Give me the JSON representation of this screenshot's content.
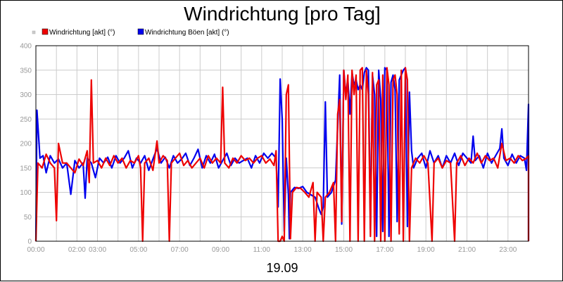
{
  "chart_data": {
    "type": "line",
    "title": "Windrichtung [pro Tag]",
    "xlabel": "19.09",
    "ylabel": "",
    "ylim": [
      0,
      400
    ],
    "yticks": [
      0,
      50,
      100,
      150,
      200,
      250,
      300,
      350,
      400
    ],
    "xlim": [
      0,
      24
    ],
    "xticks": [
      {
        "hour": 0,
        "label": "00:00"
      },
      {
        "hour": 2,
        "label": "02:00"
      },
      {
        "hour": 3,
        "label": "03:00"
      },
      {
        "hour": 5,
        "label": "05:00"
      },
      {
        "hour": 7,
        "label": "07:00"
      },
      {
        "hour": 9,
        "label": "09:00"
      },
      {
        "hour": 11,
        "label": "11:00"
      },
      {
        "hour": 13,
        "label": "13:00"
      },
      {
        "hour": 15,
        "label": "15:00"
      },
      {
        "hour": 17,
        "label": "17:00"
      },
      {
        "hour": 19,
        "label": "19:00"
      },
      {
        "hour": 21,
        "label": "21:00"
      },
      {
        "hour": 23,
        "label": "23:00"
      }
    ],
    "grid": true,
    "legend_position": "top-left",
    "series": [
      {
        "name": "Windrichtung Böen [akt] (°)",
        "color": "#0000ee",
        "points": [
          [
            0.0,
            0
          ],
          [
            0.05,
            268
          ],
          [
            0.2,
            170
          ],
          [
            0.35,
            175
          ],
          [
            0.5,
            140
          ],
          [
            0.7,
            175
          ],
          [
            0.9,
            160
          ],
          [
            1.1,
            168
          ],
          [
            1.3,
            150
          ],
          [
            1.5,
            160
          ],
          [
            1.7,
            96
          ],
          [
            1.9,
            165
          ],
          [
            2.1,
            150
          ],
          [
            2.3,
            160
          ],
          [
            2.4,
            88
          ],
          [
            2.5,
            170
          ],
          [
            2.7,
            160
          ],
          [
            2.9,
            130
          ],
          [
            3.1,
            170
          ],
          [
            3.3,
            160
          ],
          [
            3.5,
            172
          ],
          [
            3.7,
            150
          ],
          [
            3.9,
            175
          ],
          [
            4.1,
            160
          ],
          [
            4.3,
            170
          ],
          [
            4.5,
            185
          ],
          [
            4.7,
            150
          ],
          [
            4.9,
            170
          ],
          [
            5.1,
            160
          ],
          [
            5.3,
            175
          ],
          [
            5.5,
            145
          ],
          [
            5.7,
            168
          ],
          [
            5.9,
            190
          ],
          [
            6.1,
            160
          ],
          [
            6.3,
            172
          ],
          [
            6.5,
            150
          ],
          [
            6.7,
            175
          ],
          [
            6.9,
            160
          ],
          [
            7.1,
            168
          ],
          [
            7.3,
            180
          ],
          [
            7.5,
            155
          ],
          [
            7.7,
            170
          ],
          [
            7.9,
            188
          ],
          [
            8.1,
            150
          ],
          [
            8.3,
            175
          ],
          [
            8.5,
            160
          ],
          [
            8.7,
            178
          ],
          [
            8.9,
            150
          ],
          [
            9.1,
            165
          ],
          [
            9.3,
            180
          ],
          [
            9.5,
            155
          ],
          [
            9.7,
            170
          ],
          [
            9.9,
            160
          ],
          [
            10.1,
            165
          ],
          [
            10.3,
            170
          ],
          [
            10.5,
            150
          ],
          [
            10.7,
            175
          ],
          [
            10.9,
            160
          ],
          [
            11.1,
            180
          ],
          [
            11.3,
            170
          ],
          [
            11.5,
            180
          ],
          [
            11.7,
            170
          ],
          [
            11.8,
            70
          ],
          [
            11.9,
            332
          ],
          [
            12.0,
            250
          ],
          [
            12.1,
            20
          ],
          [
            12.2,
            170
          ],
          [
            12.3,
            95
          ],
          [
            12.35,
            5
          ],
          [
            12.4,
            100
          ],
          [
            12.6,
            110
          ],
          [
            12.8,
            108
          ],
          [
            13.0,
            112
          ],
          [
            13.2,
            100
          ],
          [
            13.4,
            95
          ],
          [
            13.6,
            90
          ],
          [
            13.8,
            65
          ],
          [
            13.9,
            55
          ],
          [
            14.0,
            70
          ],
          [
            14.1,
            285
          ],
          [
            14.2,
            90
          ],
          [
            14.4,
            100
          ],
          [
            14.6,
            125
          ],
          [
            14.8,
            340
          ],
          [
            14.9,
            35
          ],
          [
            15.0,
            350
          ],
          [
            15.1,
            300
          ],
          [
            15.2,
            330
          ],
          [
            15.3,
            260
          ],
          [
            15.4,
            345
          ],
          [
            15.5,
            320
          ],
          [
            15.6,
            330
          ],
          [
            15.7,
            310
          ],
          [
            15.8,
            320
          ],
          [
            15.9,
            310
          ],
          [
            16.0,
            345
          ],
          [
            16.1,
            355
          ],
          [
            16.2,
            350
          ],
          [
            16.3,
            25
          ],
          [
            16.4,
            340
          ],
          [
            16.5,
            300
          ],
          [
            16.6,
            10
          ],
          [
            16.7,
            350
          ],
          [
            16.8,
            290
          ],
          [
            16.9,
            20
          ],
          [
            17.0,
            355
          ],
          [
            17.1,
            350
          ],
          [
            17.2,
            10
          ],
          [
            17.3,
            325
          ],
          [
            17.4,
            340
          ],
          [
            17.5,
            310
          ],
          [
            17.6,
            40
          ],
          [
            17.7,
            330
          ],
          [
            17.8,
            340
          ],
          [
            17.9,
            350
          ],
          [
            18.0,
            355
          ],
          [
            18.1,
            30
          ],
          [
            18.2,
            305
          ],
          [
            18.3,
            185
          ],
          [
            18.4,
            150
          ],
          [
            18.6,
            170
          ],
          [
            18.8,
            180
          ],
          [
            19.0,
            150
          ],
          [
            19.2,
            185
          ],
          [
            19.4,
            160
          ],
          [
            19.6,
            175
          ],
          [
            19.8,
            150
          ],
          [
            20.0,
            175
          ],
          [
            20.2,
            160
          ],
          [
            20.4,
            180
          ],
          [
            20.6,
            155
          ],
          [
            20.8,
            180
          ],
          [
            21.0,
            170
          ],
          [
            21.2,
            160
          ],
          [
            21.3,
            215
          ],
          [
            21.4,
            165
          ],
          [
            21.6,
            175
          ],
          [
            21.8,
            150
          ],
          [
            22.0,
            180
          ],
          [
            22.2,
            160
          ],
          [
            22.4,
            175
          ],
          [
            22.6,
            190
          ],
          [
            22.7,
            230
          ],
          [
            22.8,
            170
          ],
          [
            23.0,
            155
          ],
          [
            23.2,
            178
          ],
          [
            23.4,
            160
          ],
          [
            23.6,
            175
          ],
          [
            23.8,
            170
          ],
          [
            23.9,
            145
          ],
          [
            24.0,
            280
          ],
          [
            24.1,
            210
          ],
          [
            24.25,
            155
          ],
          [
            24.35,
            175
          ],
          [
            24.4,
            0
          ]
        ]
      },
      {
        "name": "Windrichtung [akt] (°)",
        "color": "#ee0000",
        "points": [
          [
            0.0,
            0
          ],
          [
            0.1,
            160
          ],
          [
            0.3,
            150
          ],
          [
            0.5,
            178
          ],
          [
            0.7,
            160
          ],
          [
            0.9,
            150
          ],
          [
            1.0,
            42
          ],
          [
            1.1,
            200
          ],
          [
            1.3,
            160
          ],
          [
            1.5,
            160
          ],
          [
            1.7,
            150
          ],
          [
            1.9,
            140
          ],
          [
            2.1,
            168
          ],
          [
            2.3,
            155
          ],
          [
            2.5,
            185
          ],
          [
            2.6,
            120
          ],
          [
            2.7,
            330
          ],
          [
            2.8,
            160
          ],
          [
            3.0,
            165
          ],
          [
            3.2,
            150
          ],
          [
            3.4,
            170
          ],
          [
            3.6,
            155
          ],
          [
            3.8,
            175
          ],
          [
            4.0,
            160
          ],
          [
            4.2,
            170
          ],
          [
            4.4,
            150
          ],
          [
            4.6,
            165
          ],
          [
            4.8,
            160
          ],
          [
            5.0,
            175
          ],
          [
            5.1,
            150
          ],
          [
            5.2,
            0
          ],
          [
            5.3,
            160
          ],
          [
            5.5,
            170
          ],
          [
            5.7,
            145
          ],
          [
            5.9,
            205
          ],
          [
            6.0,
            160
          ],
          [
            6.2,
            175
          ],
          [
            6.4,
            165
          ],
          [
            6.5,
            0
          ],
          [
            6.6,
            160
          ],
          [
            6.8,
            170
          ],
          [
            7.0,
            180
          ],
          [
            7.2,
            155
          ],
          [
            7.4,
            165
          ],
          [
            7.6,
            150
          ],
          [
            7.8,
            160
          ],
          [
            8.0,
            170
          ],
          [
            8.2,
            150
          ],
          [
            8.4,
            175
          ],
          [
            8.6,
            160
          ],
          [
            8.8,
            170
          ],
          [
            9.0,
            160
          ],
          [
            9.1,
            315
          ],
          [
            9.2,
            160
          ],
          [
            9.4,
            150
          ],
          [
            9.6,
            170
          ],
          [
            9.8,
            160
          ],
          [
            10.0,
            175
          ],
          [
            10.2,
            165
          ],
          [
            10.4,
            170
          ],
          [
            10.6,
            160
          ],
          [
            10.8,
            170
          ],
          [
            11.0,
            175
          ],
          [
            11.2,
            160
          ],
          [
            11.4,
            168
          ],
          [
            11.6,
            155
          ],
          [
            11.7,
            185
          ],
          [
            11.8,
            0
          ],
          [
            11.9,
            0
          ],
          [
            12.0,
            10
          ],
          [
            12.1,
            0
          ],
          [
            12.2,
            300
          ],
          [
            12.3,
            320
          ],
          [
            12.4,
            5
          ],
          [
            12.5,
            100
          ],
          [
            12.7,
            110
          ],
          [
            12.9,
            108
          ],
          [
            13.1,
            100
          ],
          [
            13.3,
            90
          ],
          [
            13.5,
            120
          ],
          [
            13.6,
            0
          ],
          [
            13.7,
            100
          ],
          [
            13.9,
            90
          ],
          [
            14.0,
            0
          ],
          [
            14.1,
            90
          ],
          [
            14.3,
            100
          ],
          [
            14.5,
            120
          ],
          [
            14.6,
            0
          ],
          [
            14.7,
            260
          ],
          [
            14.8,
            290
          ],
          [
            14.9,
            40
          ],
          [
            15.0,
            350
          ],
          [
            15.1,
            290
          ],
          [
            15.2,
            340
          ],
          [
            15.3,
            0
          ],
          [
            15.4,
            350
          ],
          [
            15.5,
            300
          ],
          [
            15.6,
            340
          ],
          [
            15.7,
            0
          ],
          [
            15.8,
            350
          ],
          [
            15.9,
            355
          ],
          [
            16.0,
            0
          ],
          [
            16.1,
            350
          ],
          [
            16.2,
            300
          ],
          [
            16.3,
            10
          ],
          [
            16.4,
            345
          ],
          [
            16.5,
            0
          ],
          [
            16.6,
            320
          ],
          [
            16.7,
            330
          ],
          [
            16.8,
            0
          ],
          [
            16.9,
            340
          ],
          [
            17.0,
            0
          ],
          [
            17.1,
            355
          ],
          [
            17.2,
            320
          ],
          [
            17.3,
            0
          ],
          [
            17.4,
            330
          ],
          [
            17.5,
            340
          ],
          [
            17.6,
            300
          ],
          [
            17.7,
            15
          ],
          [
            17.8,
            350
          ],
          [
            17.9,
            0
          ],
          [
            18.0,
            355
          ],
          [
            18.1,
            330
          ],
          [
            18.2,
            0
          ],
          [
            18.3,
            150
          ],
          [
            18.5,
            170
          ],
          [
            18.7,
            160
          ],
          [
            18.9,
            175
          ],
          [
            19.1,
            160
          ],
          [
            19.3,
            0
          ],
          [
            19.4,
            160
          ],
          [
            19.6,
            170
          ],
          [
            19.8,
            150
          ],
          [
            20.0,
            165
          ],
          [
            20.2,
            160
          ],
          [
            20.4,
            0
          ],
          [
            20.5,
            160
          ],
          [
            20.7,
            175
          ],
          [
            20.9,
            155
          ],
          [
            21.1,
            170
          ],
          [
            21.3,
            160
          ],
          [
            21.5,
            180
          ],
          [
            21.7,
            160
          ],
          [
            21.9,
            175
          ],
          [
            22.1,
            165
          ],
          [
            22.3,
            170
          ],
          [
            22.5,
            150
          ],
          [
            22.7,
            200
          ],
          [
            22.9,
            165
          ],
          [
            23.1,
            170
          ],
          [
            23.3,
            160
          ],
          [
            23.5,
            175
          ],
          [
            23.7,
            165
          ],
          [
            23.9,
            170
          ],
          [
            24.1,
            175
          ],
          [
            24.2,
            0
          ]
        ]
      }
    ]
  }
}
